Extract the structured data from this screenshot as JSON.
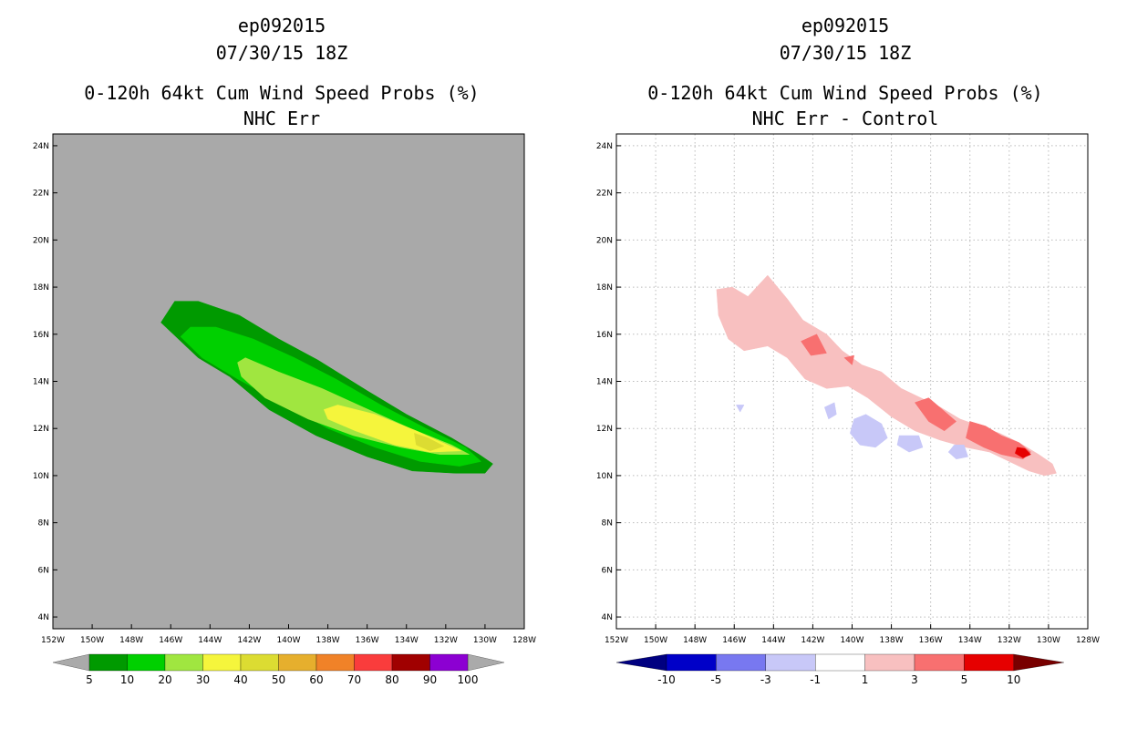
{
  "chart_data": [
    {
      "type": "heatmap",
      "subtype": "filled-contour-map",
      "title_lines": [
        "ep092015",
        "07/30/15 18Z",
        "0-120h 64kt Cum Wind Speed Probs (%)",
        "NHC Err"
      ],
      "background_color": "#a9a9a9",
      "x_ticks": [
        "152W",
        "150W",
        "148W",
        "146W",
        "144W",
        "142W",
        "140W",
        "138W",
        "136W",
        "134W",
        "132W",
        "130W",
        "128W"
      ],
      "y_ticks": [
        "24N",
        "22N",
        "20N",
        "18N",
        "16N",
        "14N",
        "12N",
        "10N",
        "8N",
        "6N",
        "4N"
      ],
      "xlim": [
        -152,
        -128
      ],
      "ylim": [
        3.5,
        24.5
      ],
      "grid": false,
      "contours": [
        {
          "level": 5,
          "color": "#009a00",
          "points": [
            [
              -146.5,
              16.5
            ],
            [
              -145.8,
              17.4
            ],
            [
              -144.6,
              17.4
            ],
            [
              -142.5,
              16.8
            ],
            [
              -140.5,
              15.8
            ],
            [
              -138.5,
              14.9
            ],
            [
              -136,
              13.6
            ],
            [
              -134,
              12.6
            ],
            [
              -131.7,
              11.6
            ],
            [
              -130.3,
              10.9
            ],
            [
              -129.6,
              10.5
            ],
            [
              -130,
              10.1
            ],
            [
              -131.5,
              10.1
            ],
            [
              -133.7,
              10.2
            ],
            [
              -136,
              10.8
            ],
            [
              -138.6,
              11.7
            ],
            [
              -141,
              12.8
            ],
            [
              -143,
              14.2
            ],
            [
              -144.6,
              15
            ]
          ]
        },
        {
          "level": 10,
          "color": "#00d000",
          "points": [
            [
              -145.5,
              15.9
            ],
            [
              -145,
              16.3
            ],
            [
              -143.7,
              16.3
            ],
            [
              -141.8,
              15.8
            ],
            [
              -139.7,
              15
            ],
            [
              -137.6,
              14.1
            ],
            [
              -135.3,
              13
            ],
            [
              -133,
              12
            ],
            [
              -131,
              11.2
            ],
            [
              -130.2,
              10.6
            ],
            [
              -131.3,
              10.4
            ],
            [
              -133.3,
              10.6
            ],
            [
              -135.6,
              11.2
            ],
            [
              -138,
              12
            ],
            [
              -140.6,
              13.2
            ],
            [
              -142.6,
              14.1
            ],
            [
              -144.4,
              15
            ]
          ]
        },
        {
          "level": 20,
          "color": "#a0e640",
          "points": [
            [
              -142.6,
              14.8
            ],
            [
              -142.2,
              15
            ],
            [
              -140.5,
              14.4
            ],
            [
              -138.3,
              13.7
            ],
            [
              -136.2,
              12.9
            ],
            [
              -133.8,
              12
            ],
            [
              -131.7,
              11.3
            ],
            [
              -130.8,
              10.9
            ],
            [
              -132.3,
              10.9
            ],
            [
              -134.3,
              11.2
            ],
            [
              -136.7,
              11.7
            ],
            [
              -139,
              12.4
            ],
            [
              -141.2,
              13.3
            ],
            [
              -142.4,
              14.2
            ]
          ]
        },
        {
          "level": 30,
          "color": "#f5f53c",
          "points": [
            [
              -138.2,
              12.8
            ],
            [
              -137.5,
              13
            ],
            [
              -135.6,
              12.6
            ],
            [
              -133.5,
              11.9
            ],
            [
              -131.9,
              11.3
            ],
            [
              -131.2,
              11.05
            ],
            [
              -132.8,
              11
            ],
            [
              -134.6,
              11.3
            ],
            [
              -136.6,
              11.9
            ],
            [
              -138,
              12.4
            ]
          ]
        },
        {
          "level": 40,
          "color": "#dcdc32",
          "points": [
            [
              -133.6,
              11.8
            ],
            [
              -132.9,
              11.6
            ],
            [
              -132.1,
              11.25
            ],
            [
              -132.8,
              11.05
            ],
            [
              -133.5,
              11.3
            ]
          ]
        }
      ],
      "colorbar": {
        "labels": [
          "5",
          "10",
          "20",
          "30",
          "40",
          "50",
          "60",
          "70",
          "80",
          "90",
          "100"
        ],
        "colors": [
          "#009a00",
          "#00d000",
          "#a0e640",
          "#f5f53c",
          "#dcdc32",
          "#e6af2d",
          "#f08228",
          "#fa3c3c",
          "#a00000",
          "#8c00d2"
        ],
        "end_color": "#aaaaaa"
      }
    },
    {
      "type": "heatmap",
      "subtype": "filled-contour-map",
      "title_lines": [
        "ep092015",
        "07/30/15 18Z",
        "0-120h 64kt Cum Wind Speed Probs (%)",
        "NHC Err - Control"
      ],
      "background_color": "#ffffff",
      "x_ticks": [
        "152W",
        "150W",
        "148W",
        "146W",
        "144W",
        "142W",
        "140W",
        "138W",
        "136W",
        "134W",
        "132W",
        "130W",
        "128W"
      ],
      "y_ticks": [
        "24N",
        "22N",
        "20N",
        "18N",
        "16N",
        "14N",
        "12N",
        "10N",
        "8N",
        "6N",
        "4N"
      ],
      "xlim": [
        -152,
        -128
      ],
      "ylim": [
        3.5,
        24.5
      ],
      "grid": true,
      "contours": [
        {
          "level": 1,
          "color": "#f8c0c0",
          "points": [
            [
              -146.9,
              17.9
            ],
            [
              -146.1,
              18
            ],
            [
              -145.3,
              17.6
            ],
            [
              -144.3,
              18.5
            ],
            [
              -143.3,
              17.5
            ],
            [
              -142.5,
              16.6
            ],
            [
              -141.3,
              16
            ],
            [
              -140.5,
              15.3
            ],
            [
              -139.5,
              14.7
            ],
            [
              -138.5,
              14.4
            ],
            [
              -137.5,
              13.7
            ],
            [
              -136.5,
              13.3
            ],
            [
              -135.5,
              12.9
            ],
            [
              -134.5,
              12.4
            ],
            [
              -133.5,
              12.1
            ],
            [
              -132.5,
              11.8
            ],
            [
              -131.5,
              11.4
            ],
            [
              -130.5,
              10.9
            ],
            [
              -129.8,
              10.5
            ],
            [
              -129.6,
              10.1
            ],
            [
              -130.2,
              10
            ],
            [
              -131,
              10.2
            ],
            [
              -132,
              10.6
            ],
            [
              -133,
              11
            ],
            [
              -134.2,
              11.2
            ],
            [
              -135.5,
              11.5
            ],
            [
              -136.8,
              11.9
            ],
            [
              -138,
              12.5
            ],
            [
              -139.2,
              13.3
            ],
            [
              -140.2,
              13.8
            ],
            [
              -141.3,
              13.7
            ],
            [
              -142.4,
              14.1
            ],
            [
              -143.3,
              15
            ],
            [
              -144.3,
              15.5
            ],
            [
              -145.5,
              15.3
            ],
            [
              -146.3,
              15.8
            ],
            [
              -146.8,
              16.8
            ]
          ]
        },
        {
          "level": 3,
          "color": "#f87070",
          "points": [
            [
              -136.8,
              13.1
            ],
            [
              -136.1,
              13.3
            ],
            [
              -135.4,
              12.8
            ],
            [
              -134.7,
              12.3
            ],
            [
              -135.3,
              11.9
            ],
            [
              -136.1,
              12.3
            ]
          ]
        },
        {
          "level": 3,
          "color": "#f87070",
          "points": [
            [
              -134,
              12.3
            ],
            [
              -133.2,
              12.1
            ],
            [
              -132.4,
              11.7
            ],
            [
              -131.5,
              11.4
            ],
            [
              -130.9,
              11
            ],
            [
              -131.3,
              10.7
            ],
            [
              -132.4,
              10.9
            ],
            [
              -133.3,
              11.2
            ],
            [
              -134.2,
              11.6
            ]
          ]
        },
        {
          "level": 3,
          "color": "#f87070",
          "points": [
            [
              -142.6,
              15.7
            ],
            [
              -141.8,
              16
            ],
            [
              -141.3,
              15.2
            ],
            [
              -142.1,
              15.1
            ]
          ]
        },
        {
          "level": 3,
          "color": "#f87070",
          "points": [
            [
              -140.4,
              15
            ],
            [
              -139.9,
              15.1
            ],
            [
              -140,
              14.7
            ]
          ]
        },
        {
          "level": 5,
          "color": "#e60000",
          "points": [
            [
              -131.6,
              11.2
            ],
            [
              -131.2,
              11.15
            ],
            [
              -130.9,
              10.9
            ],
            [
              -131.3,
              10.75
            ],
            [
              -131.7,
              10.95
            ]
          ]
        },
        {
          "level": -3,
          "color": "#c8c8f8",
          "points": [
            [
              -139.9,
              12.4
            ],
            [
              -139.3,
              12.6
            ],
            [
              -138.5,
              12.2
            ],
            [
              -138.2,
              11.6
            ],
            [
              -138.8,
              11.2
            ],
            [
              -139.6,
              11.3
            ],
            [
              -140.1,
              11.8
            ]
          ]
        },
        {
          "level": -3,
          "color": "#c8c8f8",
          "points": [
            [
              -141.4,
              12.9
            ],
            [
              -140.9,
              13.1
            ],
            [
              -140.8,
              12.6
            ],
            [
              -141.2,
              12.4
            ]
          ]
        },
        {
          "level": -3,
          "color": "#c8c8f8",
          "points": [
            [
              -137.6,
              11.7
            ],
            [
              -136.6,
              11.7
            ],
            [
              -136.4,
              11.2
            ],
            [
              -137.1,
              11
            ],
            [
              -137.7,
              11.3
            ]
          ]
        },
        {
          "level": -3,
          "color": "#c8c8f8",
          "points": [
            [
              -134.8,
              11.3
            ],
            [
              -134.3,
              11.3
            ],
            [
              -134.1,
              10.8
            ],
            [
              -134.7,
              10.7
            ],
            [
              -135.1,
              11
            ]
          ]
        },
        {
          "level": -3,
          "color": "#c8c8f8",
          "points": [
            [
              -145.9,
              13
            ],
            [
              -145.5,
              13
            ],
            [
              -145.7,
              12.7
            ]
          ]
        }
      ],
      "colorbar": {
        "labels": [
          "-10",
          "-5",
          "-3",
          "-1",
          "1",
          "3",
          "5",
          "10"
        ],
        "colors": [
          "#0000c8",
          "#7878f0",
          "#c8c8f8",
          "#ffffff",
          "#f8c0c0",
          "#f87070",
          "#e60000"
        ],
        "start_color": "#000080",
        "end_color": "#780000"
      }
    }
  ]
}
